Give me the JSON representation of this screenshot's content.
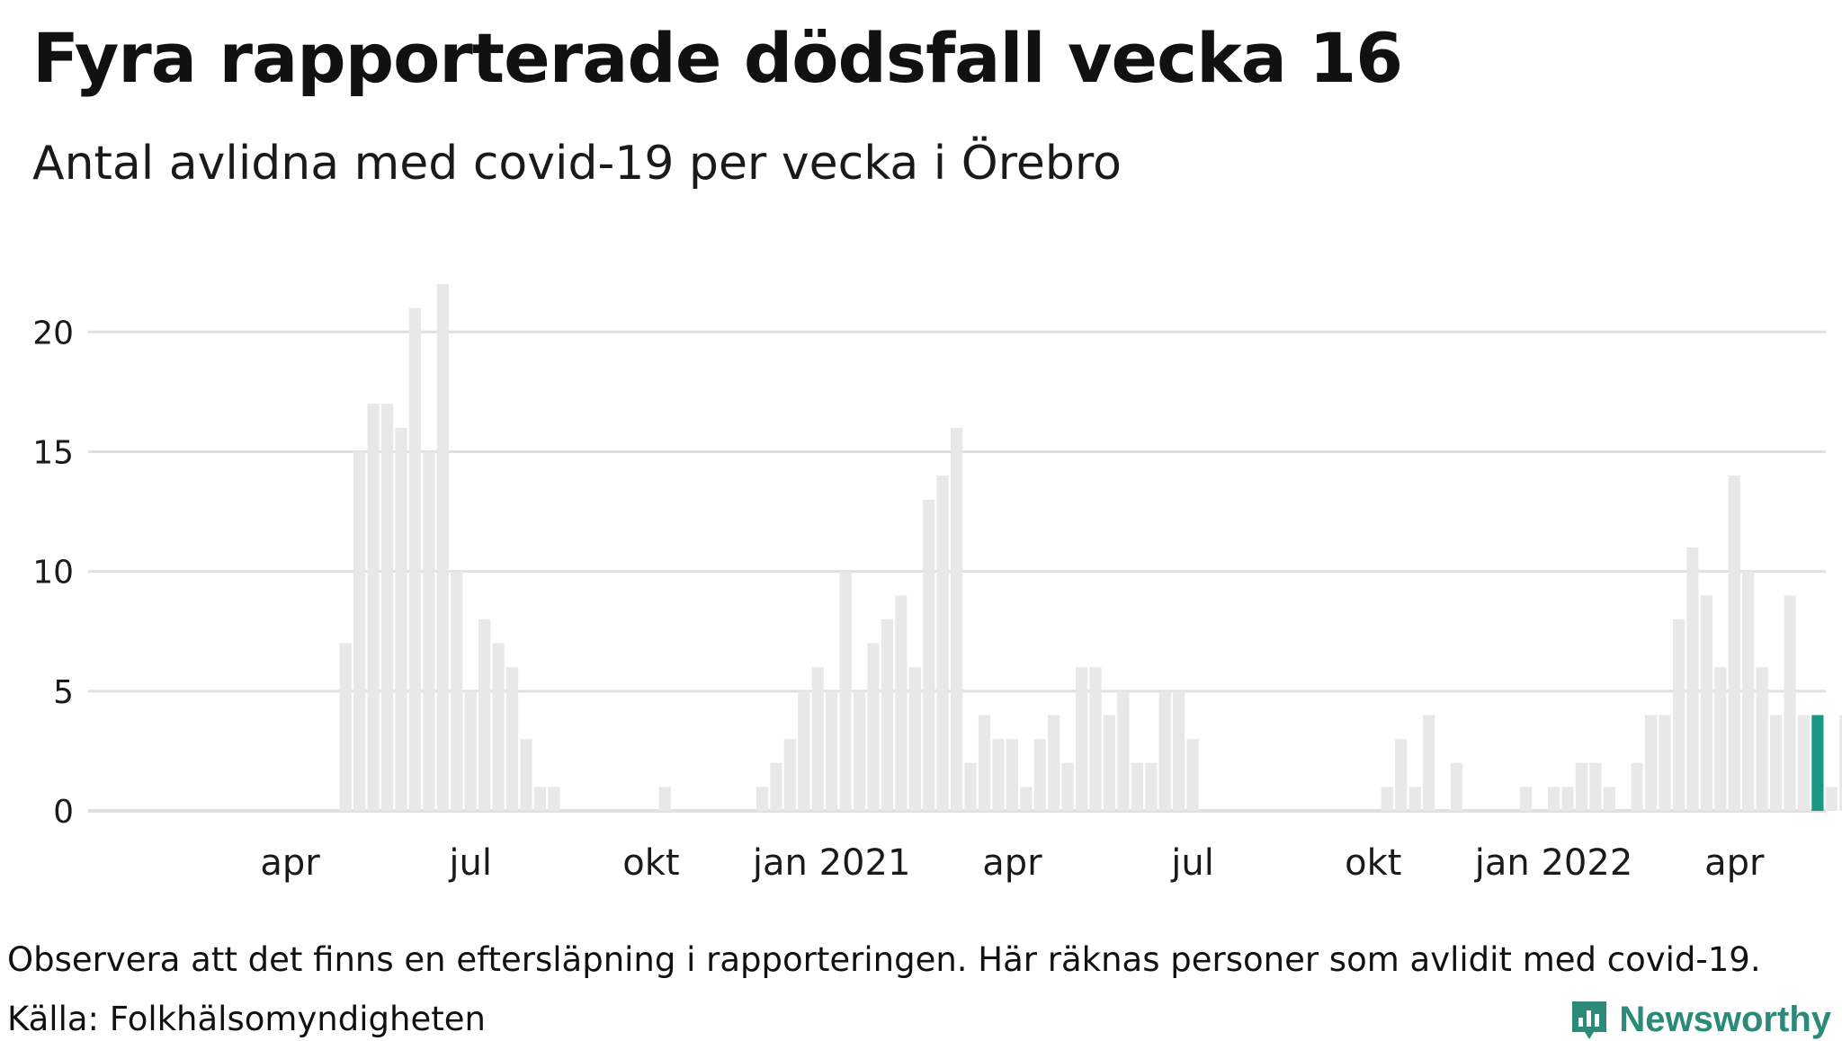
{
  "title": "Fyra rapporterade dödsfall vecka 16",
  "subtitle": "Antal avlidna med covid-19 per vecka i Örebro",
  "note": "Observera att det finns en eftersläpning i rapporteringen. Här räknas personer som avlidit med covid-19.",
  "source": "Källa: Folkhälsomyndigheten",
  "brand": {
    "name": "Newsworthy",
    "color": "#2b8a78"
  },
  "colors": {
    "bar": "#e8e8e8",
    "highlight": "#1a9883",
    "grid": "#e0e0e0"
  },
  "chart_data": {
    "type": "bar",
    "title": "Antal avlidna med covid-19 per vecka i Örebro",
    "xlabel": "",
    "ylabel": "",
    "ylim": [
      0,
      22
    ],
    "yticks": [
      0,
      5,
      10,
      15,
      20
    ],
    "grid": true,
    "xtick_labels": [
      "apr",
      "jul",
      "okt",
      "jan 2021",
      "apr",
      "jul",
      "okt",
      "jan 2022",
      "apr"
    ],
    "xtick_weeks": [
      10,
      23,
      36,
      49,
      62,
      75,
      88,
      101,
      114
    ],
    "highlight_index": 120,
    "values": [
      0,
      0,
      0,
      0,
      0,
      0,
      0,
      0,
      0,
      0,
      0,
      0,
      0,
      0,
      7,
      15,
      17,
      17,
      16,
      21,
      15,
      22,
      10,
      5,
      8,
      7,
      6,
      3,
      1,
      1,
      0,
      0,
      0,
      0,
      0,
      0,
      0,
      1,
      0,
      0,
      0,
      0,
      0,
      0,
      1,
      2,
      3,
      5,
      6,
      5,
      10,
      5,
      7,
      8,
      9,
      6,
      13,
      14,
      16,
      2,
      4,
      3,
      3,
      1,
      3,
      4,
      2,
      6,
      6,
      4,
      5,
      2,
      2,
      5,
      5,
      3,
      0,
      0,
      0,
      0,
      0,
      0,
      0,
      0,
      0,
      0,
      0,
      0,
      0,
      1,
      3,
      1,
      4,
      0,
      2,
      0,
      0,
      0,
      0,
      1,
      0,
      1,
      1,
      2,
      2,
      1,
      0,
      2,
      4,
      4,
      8,
      11,
      9,
      6,
      14,
      10,
      6,
      4,
      9,
      4,
      4,
      1,
      4
    ]
  }
}
